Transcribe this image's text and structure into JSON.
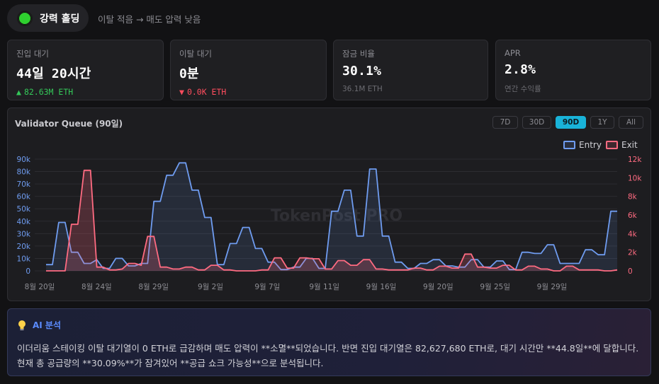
{
  "status": {
    "label": "강력 홀딩",
    "description": "이탈 적음 → 매도 압력 낮음",
    "color": "#2fd02f"
  },
  "cards": [
    {
      "title": "진입 대기",
      "value": "44일 20시간",
      "sub": "82.63M ETH",
      "trend": "up"
    },
    {
      "title": "이탈 대기",
      "value": "0분",
      "sub": "0.0K ETH",
      "trend": "down"
    },
    {
      "title": "잠금 비율",
      "value": "30.1%",
      "sub": "36.1M ETH",
      "trend": "none"
    },
    {
      "title": "APR",
      "value": "2.8%",
      "sub": "연간 수익률",
      "trend": "none"
    }
  ],
  "chart": {
    "title": "Validator Queue (90일)",
    "ranges": [
      "7D",
      "30D",
      "90D",
      "1Y",
      "All"
    ],
    "active_range": "90D",
    "watermark": "TokenPost PRO",
    "legend": [
      {
        "name": "Entry",
        "color": "#6f9cf0"
      },
      {
        "name": "Exit",
        "color": "#ff6b81"
      }
    ]
  },
  "chart_data": {
    "type": "line",
    "x_tick_labels": [
      "8월 20일",
      "8월 24일",
      "8월 29일",
      "9월 2일",
      "9월 7일",
      "9월 11일",
      "9월 16일",
      "9월 20일",
      "9월 25일",
      "9월 29일"
    ],
    "y_left_ticks": [
      "0",
      "10k",
      "20k",
      "30k",
      "40k",
      "50k",
      "60k",
      "70k",
      "80k",
      "90k"
    ],
    "y_right_ticks": [
      "0",
      "2k",
      "4k",
      "6k",
      "8k",
      "10k",
      "12k"
    ],
    "ylim_left": [
      0,
      90000
    ],
    "ylim_right": [
      0,
      12000
    ],
    "grid": true,
    "legend_position": "top-right",
    "series": [
      {
        "name": "Entry",
        "axis": "left",
        "values": [
          5000,
          5000,
          39000,
          39000,
          15000,
          15000,
          6000,
          6000,
          9000,
          2000,
          2000,
          10000,
          10000,
          4000,
          4000,
          6000,
          6000,
          56000,
          56000,
          77000,
          77000,
          87000,
          87000,
          65000,
          65000,
          43000,
          43000,
          5000,
          5000,
          22000,
          22000,
          35000,
          35000,
          18000,
          18000,
          7000,
          7000,
          1000,
          1000,
          3000,
          3000,
          10000,
          10000,
          2000,
          2000,
          48000,
          48000,
          65000,
          65000,
          28000,
          28000,
          82000,
          82000,
          28000,
          28000,
          7000,
          7000,
          2000,
          2000,
          6000,
          6000,
          9000,
          9000,
          4000,
          4000,
          3000,
          3000,
          9000,
          9000,
          3000,
          3000,
          8000,
          8000,
          1000,
          1000,
          15000,
          15000,
          14000,
          14000,
          21000,
          21000,
          6000,
          6000,
          6000,
          6000,
          17000,
          17000,
          13000,
          13000,
          48000,
          48000
        ]
      },
      {
        "name": "Exit",
        "axis": "right",
        "values": [
          0,
          0,
          0,
          0,
          5000,
          5000,
          10800,
          10800,
          400,
          400,
          100,
          100,
          200,
          800,
          800,
          600,
          3700,
          3700,
          400,
          400,
          200,
          200,
          400,
          400,
          100,
          100,
          600,
          600,
          100,
          100,
          0,
          0,
          0,
          0,
          100,
          100,
          1400,
          1400,
          300,
          300,
          1400,
          1400,
          1300,
          1300,
          200,
          200,
          1100,
          1100,
          600,
          600,
          1200,
          1200,
          200,
          200,
          100,
          100,
          100,
          100,
          300,
          300,
          100,
          100,
          500,
          500,
          300,
          300,
          1800,
          1800,
          400,
          400,
          300,
          300,
          600,
          600,
          100,
          100,
          500,
          500,
          200,
          200,
          0,
          0,
          500,
          500,
          100,
          100,
          100,
          100,
          0,
          0,
          100
        ]
      }
    ]
  },
  "ai": {
    "title": "AI 분석",
    "body": "이더리움 스테이킹 이탈 대기열이 0 ETH로 급감하며 매도 압력이 **소멸**되었습니다. 반면 진입 대기열은 82,627,680 ETH로, 대기 시간만 **44.8일**에 달합니다. 현재 총 공급량의 **30.09%**가 잠겨있어 **공급 쇼크 가능성**으로 분석됩니다."
  }
}
